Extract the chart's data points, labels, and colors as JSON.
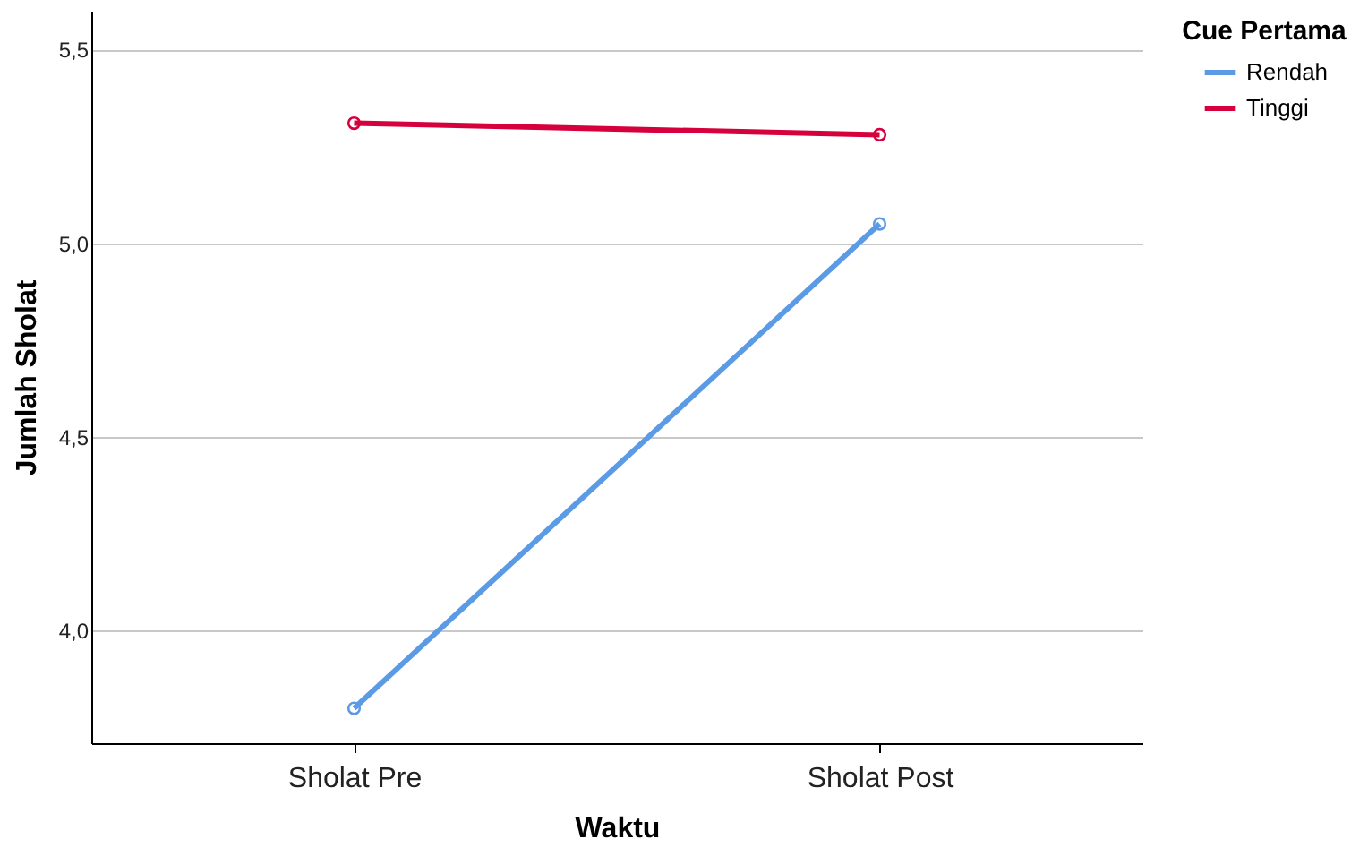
{
  "chart_data": {
    "type": "line",
    "xlabel": "Waktu",
    "ylabel": "Jumlah Sholat",
    "legend_title": "Cue Pertama",
    "categories": [
      "Sholat Pre",
      "Sholat Post"
    ],
    "series": [
      {
        "name": "Rendah",
        "color": "#5b9be6",
        "values": [
          3.8,
          5.05
        ]
      },
      {
        "name": "Tinggi",
        "color": "#d6003c",
        "values": [
          5.31,
          5.28
        ]
      }
    ],
    "ylim": [
      3.71,
      5.6
    ],
    "yticks": [
      {
        "value": 4.0,
        "label": "4,0"
      },
      {
        "value": 4.5,
        "label": "4,5"
      },
      {
        "value": 5.0,
        "label": "5,0"
      },
      {
        "value": 5.5,
        "label": "5,5"
      }
    ],
    "grid": "y",
    "legend": "top right",
    "marker": "circle",
    "line_style": "solid"
  }
}
